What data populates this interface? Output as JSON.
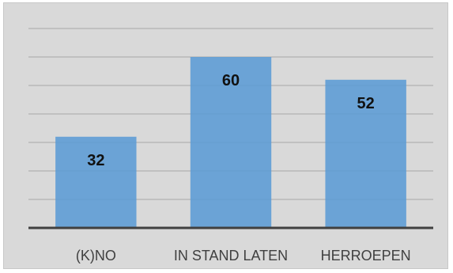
{
  "chart_data": {
    "type": "bar",
    "categories": [
      "(K)NO",
      "IN STAND LATEN",
      "HERROEPEN"
    ],
    "values": [
      32,
      60,
      52
    ],
    "title": "",
    "xlabel": "",
    "ylabel": "",
    "ylim": [
      0,
      70
    ],
    "grid": true,
    "gridline_interval": 10,
    "legend": "none",
    "colors": {
      "bar": "#5b9bd5",
      "background": "#d9d9d9",
      "gridline": "#a6a6a6",
      "axis": "#404040"
    }
  }
}
